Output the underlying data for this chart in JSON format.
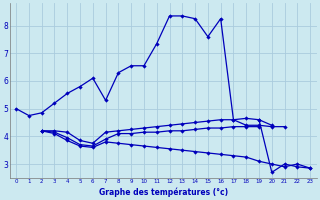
{
  "xlabel": "Graphe des températures (°c)",
  "background_color": "#cce9f0",
  "grid_color": "#aaccdd",
  "line_color": "#0000bb",
  "ylim": [
    2.5,
    8.8
  ],
  "xlim": [
    -0.5,
    23.5
  ],
  "yticks": [
    3,
    4,
    5,
    6,
    7,
    8
  ],
  "xticks": [
    0,
    1,
    2,
    3,
    4,
    5,
    6,
    7,
    8,
    9,
    10,
    11,
    12,
    13,
    14,
    15,
    16,
    17,
    18,
    19,
    20,
    21,
    22,
    23
  ],
  "series": {
    "main": {
      "x": [
        0,
        1,
        2,
        3,
        4,
        5,
        6,
        7,
        8,
        9,
        10,
        11,
        12,
        13,
        14,
        15,
        16,
        17,
        18,
        19,
        20,
        21
      ],
      "y": [
        5.0,
        4.75,
        4.85,
        5.2,
        5.55,
        5.8,
        6.1,
        5.3,
        6.3,
        6.55,
        6.55,
        7.35,
        8.35,
        8.35,
        8.25,
        7.6,
        8.25,
        4.6,
        4.4,
        4.4,
        4.35,
        4.35
      ]
    },
    "line2": {
      "x": [
        2,
        3,
        4,
        5,
        6,
        7,
        8,
        9,
        10,
        11,
        12,
        13,
        14,
        15,
        16,
        17,
        18,
        19,
        20
      ],
      "y": [
        4.2,
        4.2,
        4.15,
        3.85,
        3.75,
        4.15,
        4.2,
        4.25,
        4.3,
        4.35,
        4.4,
        4.45,
        4.5,
        4.55,
        4.6,
        4.6,
        4.65,
        4.6,
        4.4
      ]
    },
    "line3": {
      "x": [
        2,
        3,
        4,
        5,
        6,
        7,
        8,
        9,
        10,
        11,
        12,
        13,
        14,
        15,
        16,
        17,
        18,
        19
      ],
      "y": [
        4.2,
        4.15,
        3.95,
        3.7,
        3.65,
        3.9,
        4.1,
        4.1,
        4.15,
        4.15,
        4.2,
        4.2,
        4.25,
        4.3,
        4.3,
        4.35,
        4.35,
        4.35
      ]
    },
    "line4": {
      "x": [
        2,
        3,
        4,
        5,
        6,
        7,
        8,
        9,
        10,
        11,
        12,
        13,
        14,
        15,
        16,
        17,
        18,
        19,
        20,
        21,
        22,
        23
      ],
      "y": [
        4.2,
        4.1,
        3.85,
        3.65,
        3.6,
        3.8,
        3.75,
        3.7,
        3.65,
        3.6,
        3.55,
        3.5,
        3.45,
        3.4,
        3.35,
        3.3,
        3.25,
        3.1,
        3.0,
        2.9,
        3.0,
        2.85
      ]
    },
    "drop": {
      "x": [
        19,
        20,
        21,
        22,
        23
      ],
      "y": [
        4.6,
        2.7,
        3.0,
        2.9,
        2.85
      ]
    }
  }
}
